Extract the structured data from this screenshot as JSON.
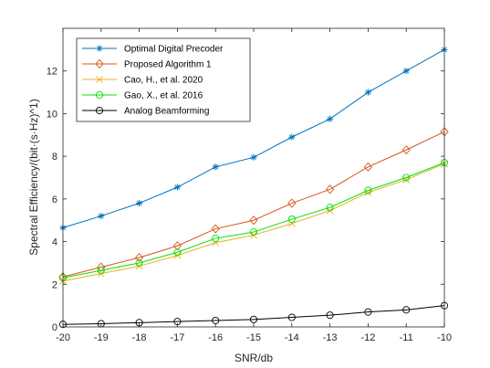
{
  "chart_data": {
    "type": "line",
    "xlabel": "SNR/db",
    "ylabel": "Spectral Efficiency/(bit·(s·Hz)^1)",
    "xlim": [
      -20,
      -10
    ],
    "ylim": [
      0,
      14
    ],
    "xticks": [
      -20,
      -19,
      -18,
      -17,
      -16,
      -15,
      -14,
      -13,
      -12,
      -11,
      -10
    ],
    "yticks": [
      0,
      2,
      4,
      6,
      8,
      10,
      12
    ],
    "grid": false,
    "legend_position": "top-left",
    "x": [
      -20,
      -19,
      -18,
      -17,
      -16,
      -15,
      -14,
      -13,
      -12,
      -11,
      -10
    ],
    "series": [
      {
        "name": "Optimal Digital Precoder",
        "color": "#0072BD",
        "marker": "asterisk",
        "values": [
          4.65,
          5.2,
          5.8,
          6.55,
          7.5,
          7.95,
          8.9,
          9.75,
          11.0,
          12.0,
          13.0
        ]
      },
      {
        "name": "Proposed Algorithm 1",
        "color": "#D95319",
        "marker": "diamond",
        "values": [
          2.35,
          2.8,
          3.25,
          3.8,
          4.6,
          5.0,
          5.8,
          6.45,
          7.5,
          8.3,
          9.15
        ]
      },
      {
        "name": "Cao, H., et al. 2020",
        "color": "#EDB120",
        "marker": "x",
        "values": [
          2.15,
          2.5,
          2.85,
          3.35,
          3.95,
          4.3,
          4.85,
          5.45,
          6.3,
          6.9,
          7.65
        ]
      },
      {
        "name": "Gao, X., et al. 2016",
        "color": "#00E000",
        "marker": "circle",
        "values": [
          2.3,
          2.65,
          3.0,
          3.5,
          4.15,
          4.45,
          5.05,
          5.6,
          6.4,
          7.0,
          7.7
        ]
      },
      {
        "name": "Analog Beamforming",
        "color": "#000000",
        "marker": "circle",
        "values": [
          0.12,
          0.15,
          0.2,
          0.25,
          0.3,
          0.35,
          0.45,
          0.55,
          0.7,
          0.8,
          1.0
        ]
      }
    ]
  }
}
